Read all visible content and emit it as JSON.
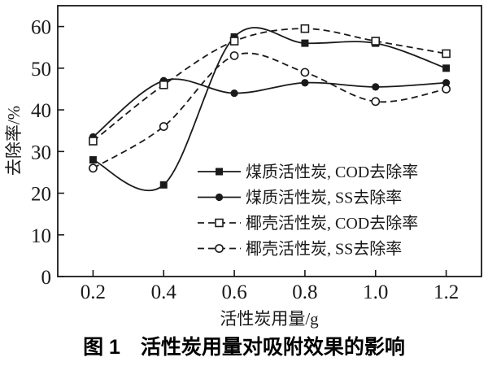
{
  "figure": {
    "caption": "图 1　活性炭用量对吸附效果的影响"
  },
  "chart_data": {
    "type": "line",
    "title": "",
    "xlabel": "活性炭用量/g",
    "ylabel": "去除率/%",
    "x": [
      0.2,
      0.4,
      0.6,
      0.8,
      1.0,
      1.2
    ],
    "series": [
      {
        "name": "煤质活性炭, COD去除率",
        "marker": "filled-square",
        "line": "solid",
        "values": [
          28,
          22,
          57.5,
          56,
          56,
          50
        ]
      },
      {
        "name": "煤质活性炭, SS去除率",
        "marker": "filled-circle",
        "line": "solid",
        "values": [
          33.5,
          47,
          44,
          46.5,
          45.5,
          46.5
        ]
      },
      {
        "name": "椰壳活性炭, COD去除率",
        "marker": "open-square",
        "line": "dashed",
        "values": [
          32.5,
          46,
          56.5,
          59.5,
          56.5,
          53.5
        ]
      },
      {
        "name": "椰壳活性炭, SS去除率",
        "marker": "open-circle",
        "line": "dashed",
        "values": [
          26,
          36,
          53,
          49,
          42,
          45
        ]
      }
    ],
    "xticks": [
      0.2,
      0.4,
      0.6,
      0.8,
      1.0,
      1.2
    ],
    "yticks": [
      0,
      10,
      20,
      30,
      40,
      50,
      60
    ],
    "xlim": [
      0.1,
      1.3
    ],
    "ylim": [
      0,
      65
    ],
    "grid": false,
    "legend_position": "inside-lower-right",
    "smoothing": "catmull-rom",
    "line_color": "#1a1a1a",
    "background_color": "#ffffff"
  }
}
